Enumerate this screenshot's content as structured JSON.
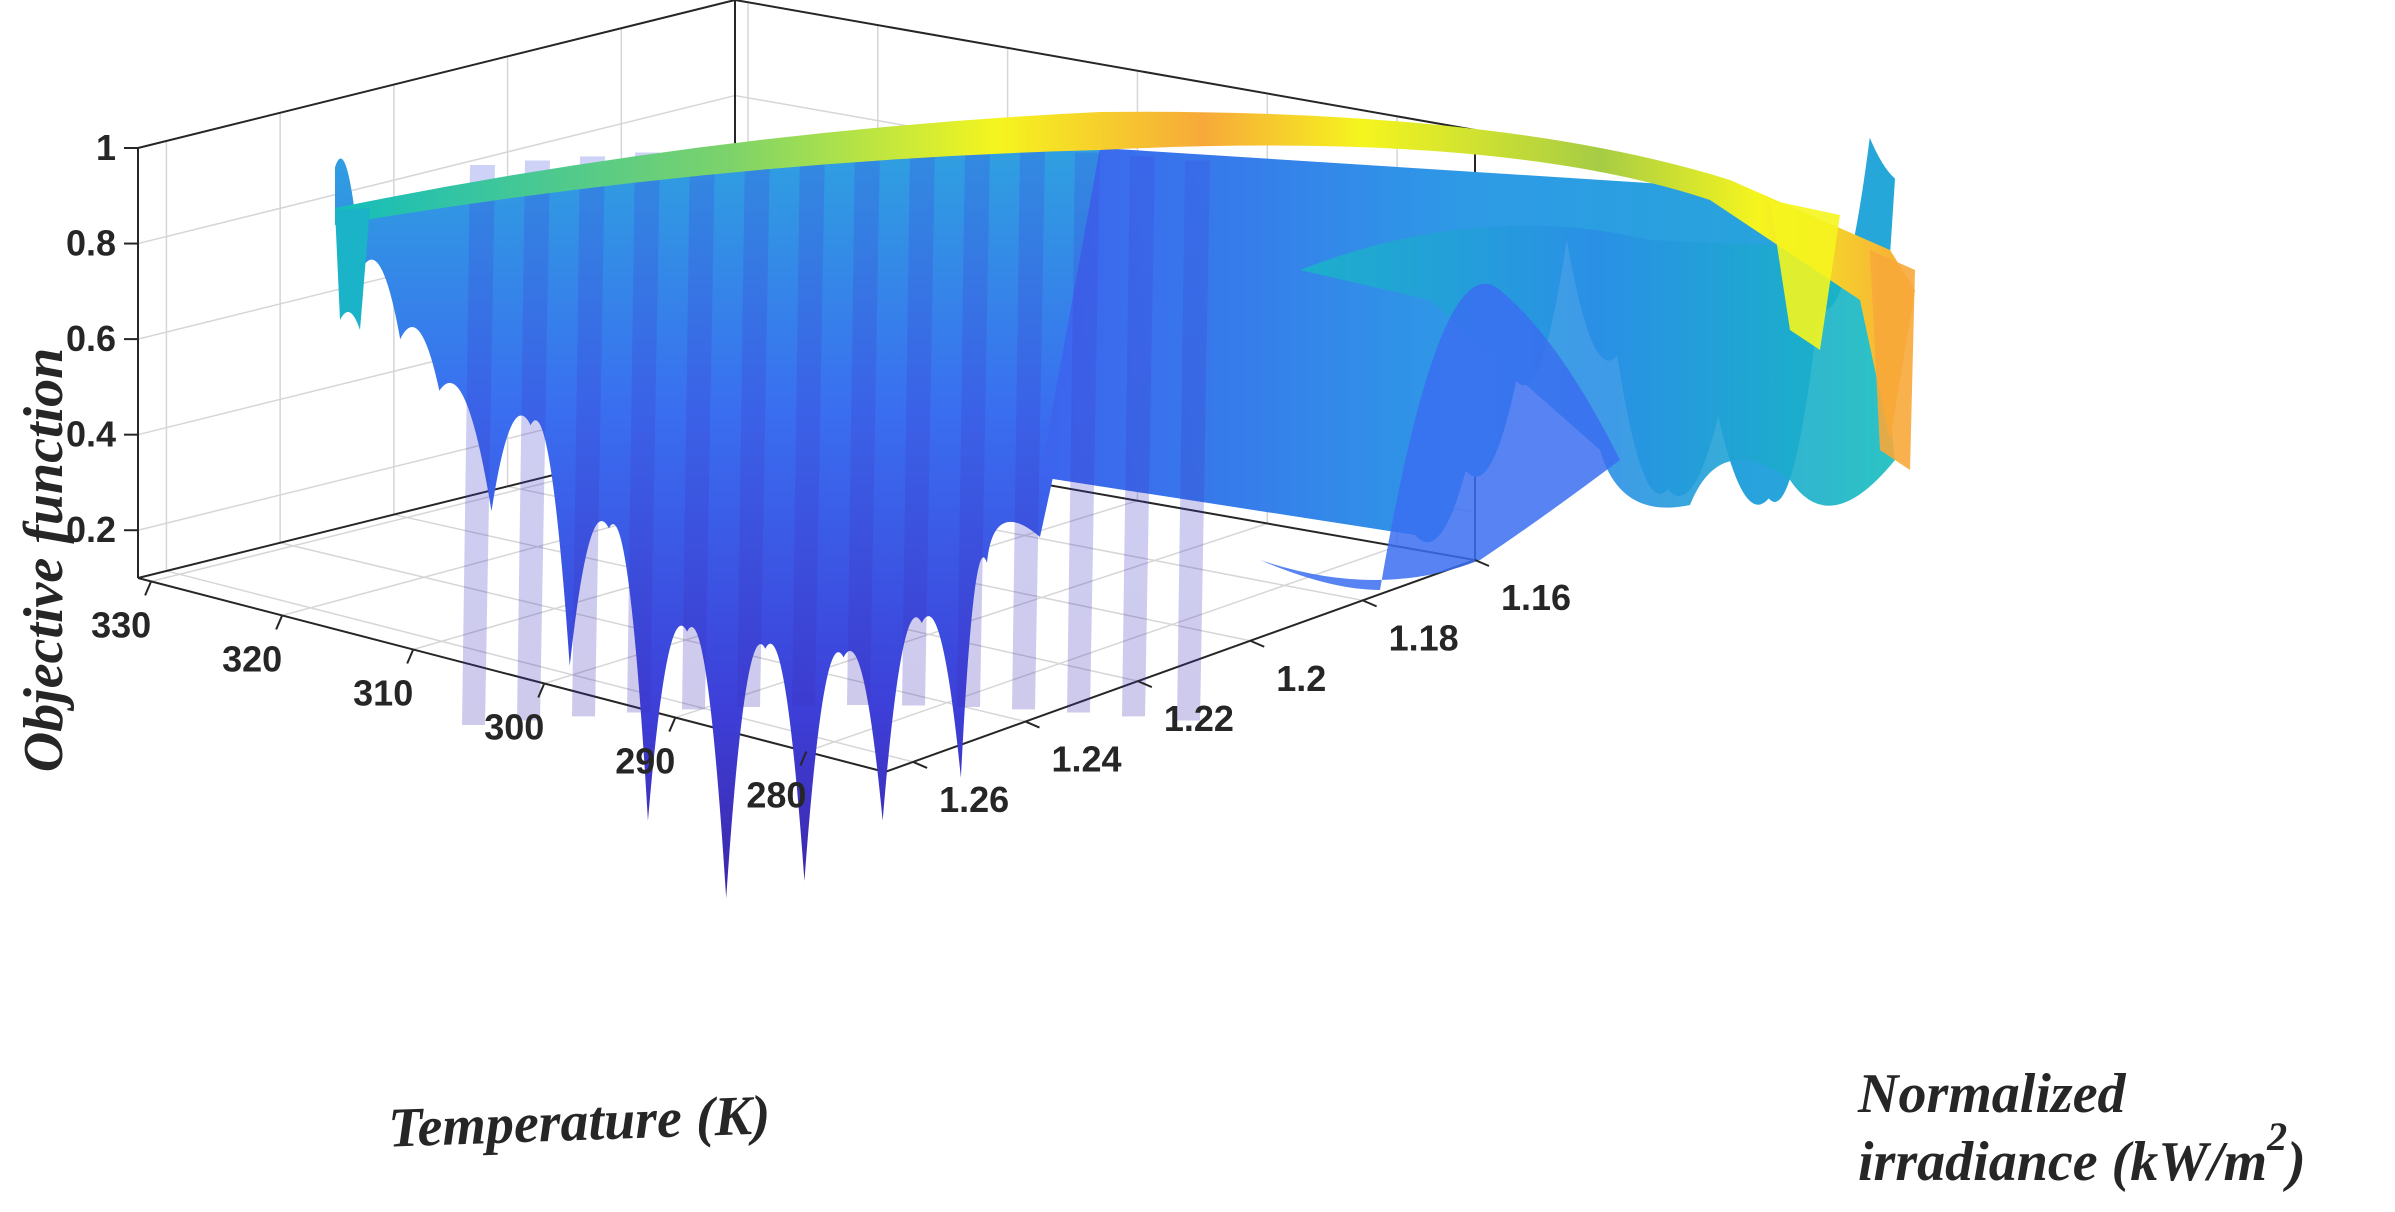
{
  "chart_data": {
    "type": "surface",
    "title": "",
    "zlabel": "Objective function",
    "xlabel": "Temperature (K)",
    "ylabel_line1": "Normalized",
    "ylabel_line2": "irradiance (kW/m",
    "ylabel_sup": "2",
    "ylabel_close": ")",
    "x_ticks": [
      "330",
      "320",
      "310",
      "300",
      "290",
      "280"
    ],
    "y_ticks": [
      "1.26",
      "1.24",
      "1.22",
      "1.2",
      "1.18",
      "1.16"
    ],
    "z_ticks": [
      "0.2",
      "0.4",
      "0.6",
      "0.8",
      "1"
    ],
    "x_range": [
      274,
      331
    ],
    "y_range": [
      1.16,
      1.265
    ],
    "z_range": [
      0.1,
      1.0
    ],
    "grid": true,
    "colormap": "parula",
    "front_profile": {
      "temperature": [
        330,
        328,
        325,
        322,
        318,
        315,
        312,
        309,
        306,
        303,
        300,
        297,
        294,
        291,
        288,
        285,
        282,
        280,
        279
      ],
      "value": [
        0.98,
        0.86,
        0.78,
        0.72,
        0.58,
        0.68,
        0.4,
        0.56,
        0.22,
        0.44,
        0.13,
        0.42,
        0.15,
        0.41,
        0.22,
        0.45,
        0.27,
        0.52,
        0.55
      ]
    },
    "back_profile": {
      "irradiance": [
        1.26,
        1.25,
        1.24,
        1.23,
        1.22,
        1.21,
        1.2,
        1.19,
        1.18,
        1.17,
        1.165
      ],
      "value": [
        0.55,
        0.62,
        0.72,
        0.88,
        0.74,
        0.58,
        0.66,
        0.56,
        0.78,
        0.97,
        0.99
      ]
    },
    "max_value": 1.0,
    "min_value": 0.12
  },
  "colors": {
    "axis": "#262626",
    "grid": "#d6d6d6",
    "low": "#3d26a8",
    "mid": "#2f8fe8",
    "teal": "#13bdbd",
    "high": "#f5f51e",
    "orange": "#f7a93a"
  }
}
